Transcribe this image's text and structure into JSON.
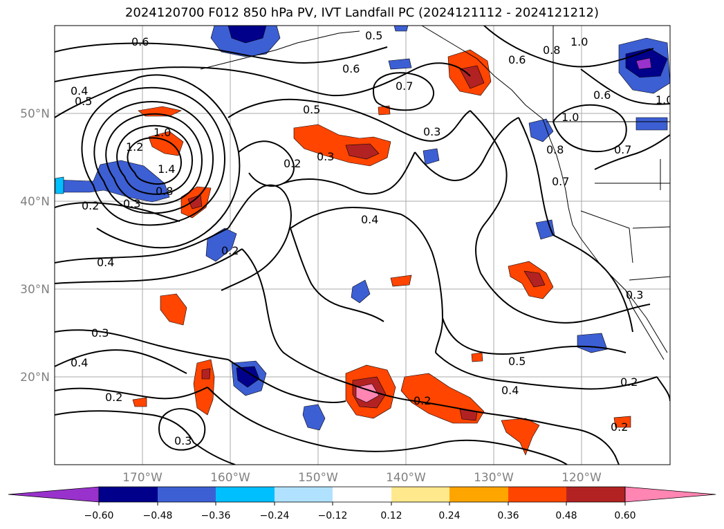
{
  "title": "2024120700 F012 850 hPa PV, IVT Landfall PC (2024121112 - 2024121212)",
  "lon_labels": [
    "170°W",
    "160°W",
    "150°W",
    "140°W",
    "130°W",
    "120°W"
  ],
  "lat_labels": [
    "50°N",
    "40°N",
    "30°N",
    "20°N"
  ],
  "contour_labels": [
    "0.6",
    "0.5",
    "0.8",
    "1.0",
    "0.4",
    "0.5",
    "0.6",
    "0.7",
    "0.6",
    "0.5",
    "0.6",
    "1.0",
    "0.3",
    "1.0",
    "1.2",
    "1.4",
    "0.8",
    "0.2",
    "0.3",
    "0.2",
    "0.3",
    "0.7",
    "0.4",
    "0.8",
    "0.7",
    "0.2",
    "0.4",
    "0.3",
    "0.4",
    "0.2",
    "0.3",
    "0.2",
    "0.5",
    "0.4",
    "0.2",
    "0.2",
    "0.3",
    "1.0"
  ],
  "colorbar": {
    "ticks": [
      "−0.60",
      "−0.48",
      "−0.36",
      "−0.24",
      "−0.12",
      "0.12",
      "0.24",
      "0.36",
      "0.48",
      "0.60"
    ],
    "colors": [
      "#9932cc",
      "#00008b",
      "#3d5fd4",
      "#00bfff",
      "#b0e2ff",
      "#ffffff",
      "#ffe98c",
      "#ffa500",
      "#ff4500",
      "#b22222",
      "#ff85b3"
    ]
  },
  "colors": {
    "grid": "#a9a9a9",
    "contour": "#000000",
    "axis_label": "#808080"
  }
}
